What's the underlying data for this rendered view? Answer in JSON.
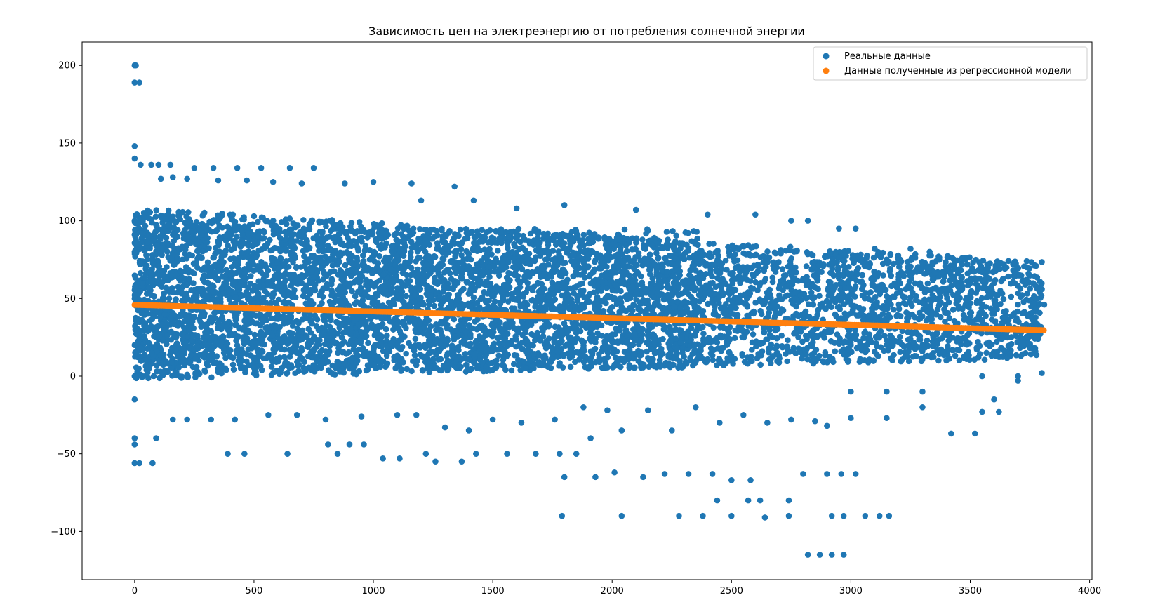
{
  "chart_data": {
    "type": "scatter",
    "title": "Зависимость цен на электреэнергию от потребления солнечной энергии",
    "xlabel": "",
    "ylabel": "",
    "xlim": [
      -220,
      4010
    ],
    "ylim": [
      -131,
      215
    ],
    "xticks": [
      0,
      500,
      1000,
      1500,
      2000,
      2500,
      3000,
      3500,
      4000
    ],
    "xtick_labels": [
      "0",
      "500",
      "1000",
      "1500",
      "2000",
      "2500",
      "3000",
      "3500",
      "4000"
    ],
    "yticks": [
      -100,
      -50,
      0,
      50,
      100,
      150,
      200
    ],
    "ytick_labels": [
      "−100",
      "−50",
      "0",
      "50",
      "100",
      "150",
      "200"
    ],
    "grid": false,
    "legend_position": "top-right",
    "series": [
      {
        "name": "Реальные данные",
        "color": "#1f77b4",
        "points": [
          [
            0,
            200
          ],
          [
            5,
            200
          ],
          [
            0,
            189
          ],
          [
            20,
            189
          ],
          [
            0,
            148
          ],
          [
            0,
            140
          ],
          [
            25,
            136
          ],
          [
            70,
            136
          ],
          [
            100,
            136
          ],
          [
            150,
            136
          ],
          [
            250,
            134
          ],
          [
            330,
            134
          ],
          [
            430,
            134
          ],
          [
            530,
            134
          ],
          [
            650,
            134
          ],
          [
            750,
            134
          ],
          [
            110,
            127
          ],
          [
            160,
            128
          ],
          [
            220,
            127
          ],
          [
            350,
            126
          ],
          [
            470,
            126
          ],
          [
            580,
            125
          ],
          [
            700,
            124
          ],
          [
            880,
            124
          ],
          [
            1000,
            125
          ],
          [
            1160,
            124
          ],
          [
            1340,
            122
          ],
          [
            1200,
            113
          ],
          [
            1420,
            113
          ],
          [
            1600,
            108
          ],
          [
            1800,
            110
          ],
          [
            2100,
            107
          ],
          [
            2400,
            104
          ],
          [
            2600,
            104
          ],
          [
            2750,
            100
          ],
          [
            2820,
            100
          ],
          [
            2950,
            95
          ],
          [
            3020,
            95
          ],
          [
            3100,
            82
          ],
          [
            3250,
            82
          ],
          [
            3330,
            80
          ],
          [
            3450,
            60
          ],
          [
            3600,
            60
          ],
          [
            3700,
            58
          ],
          [
            3800,
            56
          ],
          [
            3810,
            46
          ],
          [
            3700,
            46
          ],
          [
            3600,
            40
          ],
          [
            3550,
            36
          ],
          [
            3500,
            30
          ],
          [
            3300,
            20
          ],
          [
            3150,
            20
          ],
          [
            3000,
            20
          ],
          [
            3750,
            18
          ],
          [
            3700,
            0
          ],
          [
            3800,
            2
          ],
          [
            3550,
            0
          ],
          [
            3400,
            10
          ],
          [
            3300,
            -10
          ],
          [
            3150,
            -10
          ],
          [
            3000,
            -10
          ],
          [
            3700,
            -3
          ],
          [
            3600,
            -15
          ],
          [
            3620,
            -23
          ],
          [
            3550,
            -23
          ],
          [
            3420,
            -37
          ],
          [
            3520,
            -37
          ],
          [
            3300,
            -20
          ],
          [
            3150,
            -27
          ],
          [
            3000,
            -27
          ],
          [
            2900,
            -32
          ],
          [
            2850,
            -29
          ],
          [
            2800,
            -63
          ],
          [
            2900,
            -63
          ],
          [
            2960,
            -63
          ],
          [
            3020,
            -63
          ],
          [
            2920,
            -90
          ],
          [
            2970,
            -90
          ],
          [
            3060,
            -90
          ],
          [
            3120,
            -90
          ],
          [
            3160,
            -90
          ],
          [
            2820,
            -115
          ],
          [
            2870,
            -115
          ],
          [
            2920,
            -115
          ],
          [
            2970,
            -115
          ],
          [
            2740,
            -90
          ],
          [
            2640,
            -91
          ],
          [
            2500,
            -90
          ],
          [
            2380,
            -90
          ],
          [
            2280,
            -90
          ],
          [
            2440,
            -80
          ],
          [
            2570,
            -80
          ],
          [
            2620,
            -80
          ],
          [
            2740,
            -80
          ],
          [
            2580,
            -67
          ],
          [
            2500,
            -67
          ],
          [
            2420,
            -63
          ],
          [
            2320,
            -63
          ],
          [
            2220,
            -63
          ],
          [
            2130,
            -65
          ],
          [
            2010,
            -62
          ],
          [
            1930,
            -65
          ],
          [
            1800,
            -65
          ],
          [
            1790,
            -90
          ],
          [
            2040,
            -90
          ],
          [
            1780,
            -50
          ],
          [
            1850,
            -50
          ],
          [
            1910,
            -40
          ],
          [
            1680,
            -50
          ],
          [
            1560,
            -50
          ],
          [
            1430,
            -50
          ],
          [
            1370,
            -55
          ],
          [
            1260,
            -55
          ],
          [
            1220,
            -50
          ],
          [
            1040,
            -53
          ],
          [
            1110,
            -53
          ],
          [
            960,
            -44
          ],
          [
            900,
            -44
          ],
          [
            810,
            -44
          ],
          [
            850,
            -50
          ],
          [
            640,
            -50
          ],
          [
            460,
            -50
          ],
          [
            390,
            -50
          ],
          [
            75,
            -56
          ],
          [
            20,
            -56
          ],
          [
            0,
            -56
          ],
          [
            0,
            -44
          ],
          [
            0,
            -40
          ],
          [
            90,
            -40
          ],
          [
            160,
            -28
          ],
          [
            220,
            -28
          ],
          [
            320,
            -28
          ],
          [
            420,
            -28
          ],
          [
            560,
            -25
          ],
          [
            680,
            -25
          ],
          [
            800,
            -28
          ],
          [
            950,
            -26
          ],
          [
            1100,
            -25
          ],
          [
            1180,
            -25
          ],
          [
            1300,
            -33
          ],
          [
            1400,
            -35
          ],
          [
            1500,
            -28
          ],
          [
            1620,
            -30
          ],
          [
            1760,
            -28
          ],
          [
            1880,
            -20
          ],
          [
            1980,
            -22
          ],
          [
            2040,
            -35
          ],
          [
            2150,
            -22
          ],
          [
            2250,
            -35
          ],
          [
            2350,
            -20
          ],
          [
            2450,
            -30
          ],
          [
            2550,
            -25
          ],
          [
            2650,
            -30
          ],
          [
            2750,
            -28
          ],
          [
            0,
            50
          ],
          [
            0,
            80
          ],
          [
            0,
            20
          ],
          [
            0,
            100
          ],
          [
            0,
            0
          ],
          [
            0,
            -15
          ],
          [
            30,
            0
          ],
          [
            80,
            0
          ]
        ]
      },
      {
        "name": "Данные полученные из регрессионной модели",
        "color": "#ff7f0e",
        "x_range": [
          0,
          3815
        ],
        "y_range": [
          45.9,
          29.5
        ]
      }
    ]
  }
}
